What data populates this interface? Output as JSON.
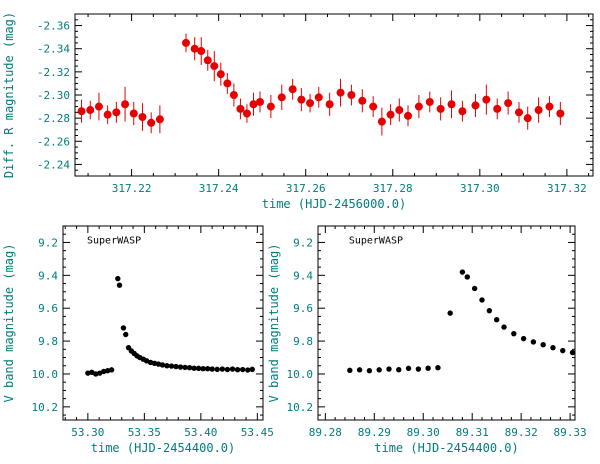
{
  "colors": {
    "background": "#ffffff",
    "axis_line": "#000000",
    "axis_text": "#007d7d",
    "annotation": "#000000"
  },
  "chart_data": [
    {
      "id": "top",
      "type": "scatter",
      "title": "",
      "xlabel": "time (HJD-2456000.0)",
      "ylabel": "Diff. R magnitude (mag)",
      "xlim": [
        317.207,
        317.326
      ],
      "y_top": -2.37,
      "y_bottom": -2.23,
      "xticks": [
        317.22,
        317.24,
        317.26,
        317.28,
        317.3,
        317.32
      ],
      "xtick_labels": [
        "317.22",
        "317.24",
        "317.26",
        "317.28",
        "317.30",
        "317.32"
      ],
      "x_minor_step": 0.005,
      "yticks": [
        -2.36,
        -2.34,
        -2.32,
        -2.3,
        -2.28,
        -2.26,
        -2.24
      ],
      "ytick_labels": [
        "-2.36",
        "-2.34",
        "-2.32",
        "-2.30",
        "-2.28",
        "-2.26",
        "-2.24"
      ],
      "y_minor_step": 0.005,
      "marker_color": "#e60000",
      "marker_r": 4,
      "error_bars": true,
      "annotation": "",
      "points": [
        [
          317.2085,
          -2.286,
          0.01
        ],
        [
          317.2105,
          -2.287,
          0.008
        ],
        [
          317.2125,
          -2.29,
          0.012
        ],
        [
          317.2145,
          -2.283,
          0.008
        ],
        [
          317.2165,
          -2.285,
          0.009
        ],
        [
          317.2185,
          -2.292,
          0.015
        ],
        [
          317.2205,
          -2.284,
          0.01
        ],
        [
          317.2225,
          -2.281,
          0.012
        ],
        [
          317.2245,
          -2.276,
          0.009
        ],
        [
          317.2265,
          -2.279,
          0.012
        ],
        [
          317.2325,
          -2.345,
          0.008
        ],
        [
          317.2345,
          -2.34,
          0.01
        ],
        [
          317.236,
          -2.338,
          0.012
        ],
        [
          317.2375,
          -2.33,
          0.009
        ],
        [
          317.239,
          -2.325,
          0.013
        ],
        [
          317.2405,
          -2.318,
          0.01
        ],
        [
          317.242,
          -2.31,
          0.009
        ],
        [
          317.2435,
          -2.3,
          0.01
        ],
        [
          317.245,
          -2.288,
          0.009
        ],
        [
          317.2465,
          -2.284,
          0.008
        ],
        [
          317.248,
          -2.292,
          0.01
        ],
        [
          317.2495,
          -2.294,
          0.009
        ],
        [
          317.252,
          -2.29,
          0.01
        ],
        [
          317.2545,
          -2.298,
          0.011
        ],
        [
          317.257,
          -2.305,
          0.009
        ],
        [
          317.259,
          -2.296,
          0.01
        ],
        [
          317.261,
          -2.293,
          0.008
        ],
        [
          317.263,
          -2.298,
          0.009
        ],
        [
          317.2655,
          -2.292,
          0.01
        ],
        [
          317.268,
          -2.302,
          0.012
        ],
        [
          317.2705,
          -2.3,
          0.009
        ],
        [
          317.273,
          -2.295,
          0.01
        ],
        [
          317.2755,
          -2.29,
          0.009
        ],
        [
          317.2775,
          -2.277,
          0.012
        ],
        [
          317.2795,
          -2.283,
          0.009
        ],
        [
          317.2815,
          -2.287,
          0.01
        ],
        [
          317.2835,
          -2.282,
          0.009
        ],
        [
          317.286,
          -2.29,
          0.01
        ],
        [
          317.2885,
          -2.294,
          0.009
        ],
        [
          317.291,
          -2.288,
          0.01
        ],
        [
          317.2935,
          -2.292,
          0.012
        ],
        [
          317.296,
          -2.286,
          0.009
        ],
        [
          317.299,
          -2.291,
          0.01
        ],
        [
          317.3015,
          -2.296,
          0.013
        ],
        [
          317.304,
          -2.288,
          0.009
        ],
        [
          317.3065,
          -2.293,
          0.01
        ],
        [
          317.309,
          -2.285,
          0.009
        ],
        [
          317.311,
          -2.28,
          0.01
        ],
        [
          317.3135,
          -2.287,
          0.011
        ],
        [
          317.316,
          -2.29,
          0.009
        ],
        [
          317.3185,
          -2.284,
          0.01
        ]
      ]
    },
    {
      "id": "left",
      "type": "scatter",
      "title": "",
      "xlabel": "time (HJD-2454400.0)",
      "ylabel": "V band magnitude (mag)",
      "xlim": [
        53.278,
        53.455
      ],
      "y_top": 9.1,
      "y_bottom": 10.28,
      "xticks": [
        53.3,
        53.35,
        53.4,
        53.45
      ],
      "xtick_labels": [
        "53.30",
        "53.35",
        "53.40",
        "53.45"
      ],
      "x_minor_step": 0.01,
      "yticks": [
        9.2,
        9.4,
        9.6,
        9.8,
        10.0,
        10.2
      ],
      "ytick_labels": [
        "9.2",
        "9.4",
        "9.6",
        "9.8",
        "10.0",
        "10.2"
      ],
      "y_minor_step": 0.05,
      "marker_color": "#000000",
      "marker_r": 2.7,
      "error_bars": false,
      "annotation": "SuperWASP",
      "points": [
        [
          53.3,
          9.995
        ],
        [
          53.3035,
          9.99
        ],
        [
          53.307,
          10.0
        ],
        [
          53.3105,
          9.995
        ],
        [
          53.314,
          9.985
        ],
        [
          53.3175,
          9.98
        ],
        [
          53.321,
          9.975
        ],
        [
          53.3265,
          9.42
        ],
        [
          53.328,
          9.46
        ],
        [
          53.3315,
          9.72
        ],
        [
          53.3335,
          9.76
        ],
        [
          53.336,
          9.84
        ],
        [
          53.3385,
          9.86
        ],
        [
          53.341,
          9.875
        ],
        [
          53.3435,
          9.89
        ],
        [
          53.346,
          9.9
        ],
        [
          53.349,
          9.91
        ],
        [
          53.352,
          9.92
        ],
        [
          53.3555,
          9.93
        ],
        [
          53.359,
          9.935
        ],
        [
          53.3625,
          9.94
        ],
        [
          53.366,
          9.945
        ],
        [
          53.37,
          9.95
        ],
        [
          53.374,
          9.952
        ],
        [
          53.378,
          9.955
        ],
        [
          53.382,
          9.958
        ],
        [
          53.386,
          9.96
        ],
        [
          53.39,
          9.962
        ],
        [
          53.394,
          9.965
        ],
        [
          53.398,
          9.966
        ],
        [
          53.402,
          9.968
        ],
        [
          53.406,
          9.968
        ],
        [
          53.41,
          9.97
        ],
        [
          53.4145,
          9.972
        ],
        [
          53.419,
          9.97
        ],
        [
          53.4235,
          9.973
        ],
        [
          53.428,
          9.97
        ],
        [
          53.4325,
          9.974
        ],
        [
          53.437,
          9.973
        ],
        [
          53.4415,
          9.976
        ],
        [
          53.4455,
          9.972
        ]
      ]
    },
    {
      "id": "right",
      "type": "scatter",
      "title": "",
      "xlabel": "time (HJD-2454400.0)",
      "ylabel": "V band magnitude (mag)",
      "xlim": [
        89.2785,
        89.331
      ],
      "y_top": 9.1,
      "y_bottom": 10.28,
      "xticks": [
        89.28,
        89.29,
        89.3,
        89.31,
        89.32,
        89.33
      ],
      "xtick_labels": [
        "89.28",
        "89.29",
        "89.30",
        "89.31",
        "89.32",
        "89.33"
      ],
      "x_minor_step": 0.002,
      "yticks": [
        9.2,
        9.4,
        9.6,
        9.8,
        10.0,
        10.2
      ],
      "ytick_labels": [
        "9.2",
        "9.4",
        "9.6",
        "9.8",
        "10.0",
        "10.2"
      ],
      "y_minor_step": 0.05,
      "marker_color": "#000000",
      "marker_r": 2.7,
      "error_bars": false,
      "annotation": "SuperWASP",
      "points": [
        [
          89.285,
          9.978
        ],
        [
          89.287,
          9.975
        ],
        [
          89.289,
          9.98
        ],
        [
          89.291,
          9.975
        ],
        [
          89.293,
          9.97
        ],
        [
          89.295,
          9.974
        ],
        [
          89.297,
          9.966
        ],
        [
          89.299,
          9.97
        ],
        [
          89.301,
          9.965
        ],
        [
          89.303,
          9.962
        ],
        [
          89.3055,
          9.63
        ],
        [
          89.308,
          9.38
        ],
        [
          89.309,
          9.41
        ],
        [
          89.3105,
          9.48
        ],
        [
          89.312,
          9.55
        ],
        [
          89.3135,
          9.615
        ],
        [
          89.315,
          9.67
        ],
        [
          89.3165,
          9.715
        ],
        [
          89.3185,
          9.755
        ],
        [
          89.3205,
          9.785
        ],
        [
          89.3225,
          9.805
        ],
        [
          89.3245,
          9.822
        ],
        [
          89.3265,
          9.84
        ],
        [
          89.3285,
          9.858
        ],
        [
          89.3305,
          9.87
        ]
      ]
    }
  ]
}
